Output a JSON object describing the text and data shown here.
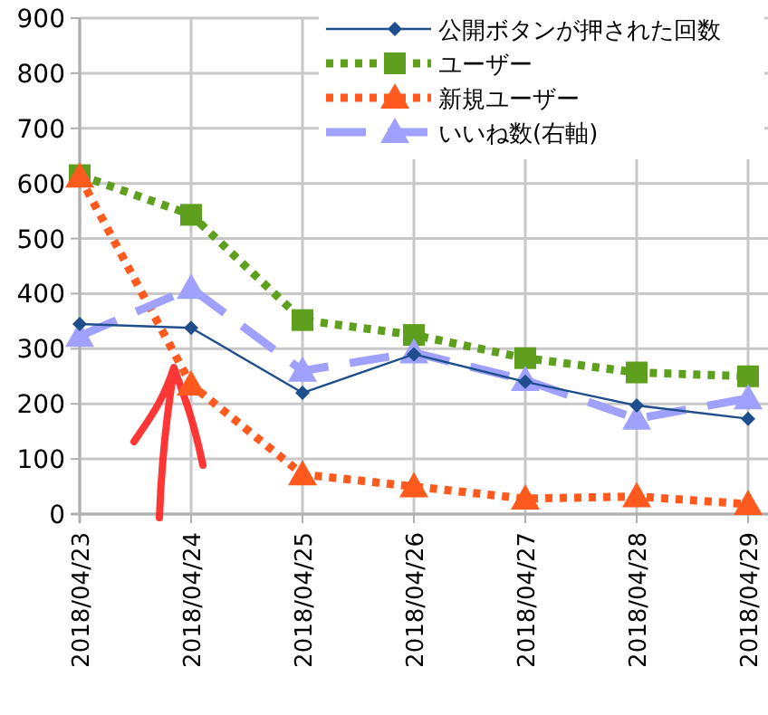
{
  "chart_data": {
    "type": "line",
    "categories": [
      "2018/04/23",
      "2018/04/24",
      "2018/04/25",
      "2018/04/26",
      "2018/04/27",
      "2018/04/28",
      "2018/04/29"
    ],
    "ylim": [
      0,
      900
    ],
    "yticks": [
      0,
      100,
      200,
      300,
      400,
      500,
      600,
      700,
      800,
      900
    ],
    "grid": true,
    "legend": "top right",
    "series": [
      {
        "name": "公開ボタンが押された回数",
        "color": "#1f4e8c",
        "marker": "diamond",
        "line_style": "solid",
        "values": [
          345,
          338,
          220,
          290,
          240,
          197,
          173
        ]
      },
      {
        "name": "ユーザー",
        "color": "#5ea01e",
        "marker": "square",
        "line_style": "dotted",
        "values": [
          615,
          543,
          352,
          325,
          283,
          257,
          250
        ]
      },
      {
        "name": "新規ユーザー",
        "color": "#ff5a1e",
        "marker": "triangle",
        "line_style": "dotted",
        "values": [
          612,
          235,
          72,
          50,
          28,
          32,
          18
        ]
      },
      {
        "name": "いいね数(右軸)",
        "color": "#a0a0ff",
        "marker": "triangle",
        "line_style": "dashed",
        "values": [
          323,
          410,
          260,
          293,
          243,
          173,
          210
        ]
      }
    ]
  }
}
